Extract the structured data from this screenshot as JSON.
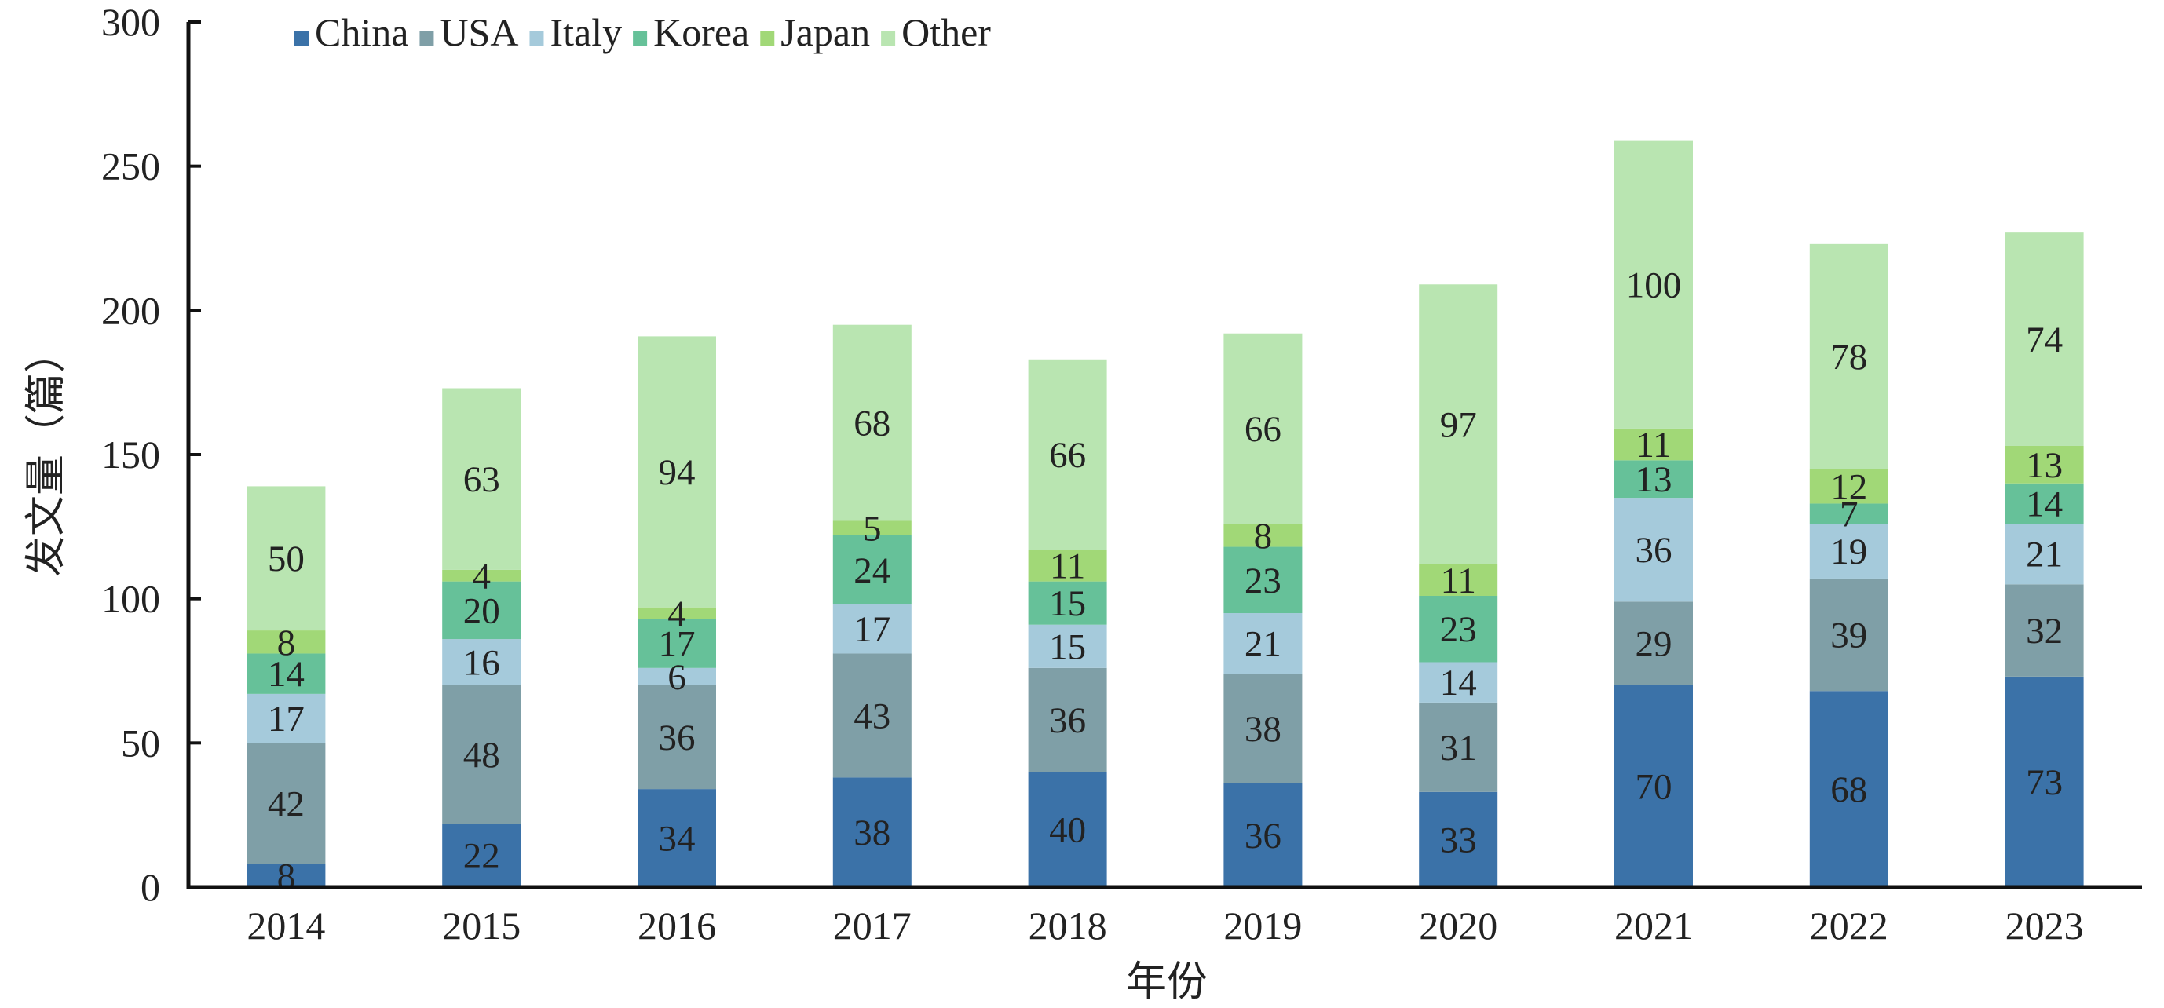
{
  "chart_data": {
    "type": "bar",
    "stacked": true,
    "categories": [
      "2014",
      "2015",
      "2016",
      "2017",
      "2018",
      "2019",
      "2020",
      "2021",
      "2022",
      "2023"
    ],
    "series": [
      {
        "name": "China",
        "color": "#3b72a8",
        "values": [
          8,
          22,
          34,
          38,
          40,
          36,
          33,
          70,
          68,
          73
        ]
      },
      {
        "name": "USA",
        "color": "#7f9fa7",
        "values": [
          42,
          48,
          36,
          43,
          36,
          38,
          31,
          29,
          39,
          32
        ]
      },
      {
        "name": "Italy",
        "color": "#a5cadb",
        "values": [
          17,
          16,
          6,
          17,
          15,
          21,
          14,
          36,
          19,
          21
        ]
      },
      {
        "name": "Korea",
        "color": "#66c199",
        "values": [
          14,
          20,
          17,
          24,
          15,
          23,
          23,
          13,
          7,
          14
        ]
      },
      {
        "name": "Japan",
        "color": "#a1d877",
        "values": [
          8,
          4,
          4,
          5,
          11,
          8,
          11,
          11,
          12,
          13
        ]
      },
      {
        "name": "Other",
        "color": "#b9e5b1",
        "values": [
          50,
          63,
          94,
          68,
          66,
          66,
          97,
          100,
          78,
          74
        ]
      }
    ],
    "xlabel": "年份",
    "ylabel": "发文量（篇）",
    "ylim": [
      0,
      300
    ],
    "yticks": [
      "0",
      "50",
      "100",
      "150",
      "200",
      "250",
      "300"
    ],
    "grid": false,
    "legend_position": "top-left",
    "data_labels": true
  }
}
